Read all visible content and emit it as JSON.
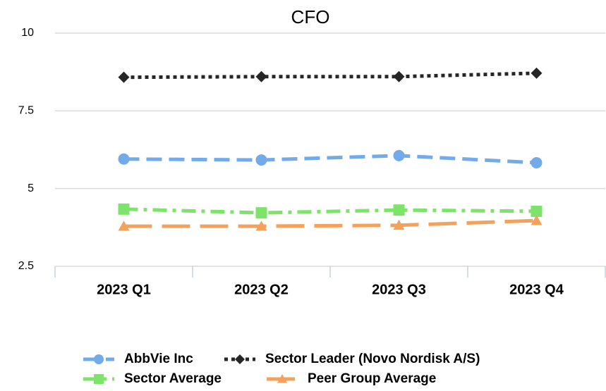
{
  "chart_data": {
    "type": "line",
    "title": "CFO",
    "categories": [
      "2023 Q1",
      "2023 Q2",
      "2023 Q3",
      "2023 Q4"
    ],
    "series": [
      {
        "name": "AbbVie Inc",
        "color": "#72aaea",
        "marker": "circle",
        "dash": "22 10",
        "values": [
          5.95,
          5.92,
          6.06,
          5.83
        ]
      },
      {
        "name": "Sector Leader (Novo Nordisk A/S)",
        "color": "#262626",
        "marker": "diamond",
        "dash": "5 5",
        "values": [
          8.58,
          8.6,
          8.6,
          8.71
        ]
      },
      {
        "name": "Sector Average",
        "color": "#7ee36a",
        "marker": "square",
        "dash": "20 8 5 8",
        "values": [
          4.34,
          4.22,
          4.31,
          4.27
        ]
      },
      {
        "name": "Peer Group Average",
        "color": "#f4a15c",
        "marker": "triangle",
        "dash": "40 14",
        "values": [
          3.79,
          3.79,
          3.82,
          3.97
        ]
      }
    ],
    "ylim": [
      2.5,
      10
    ],
    "yticks": [
      2.5,
      5,
      7.5,
      10
    ],
    "grid": true
  }
}
